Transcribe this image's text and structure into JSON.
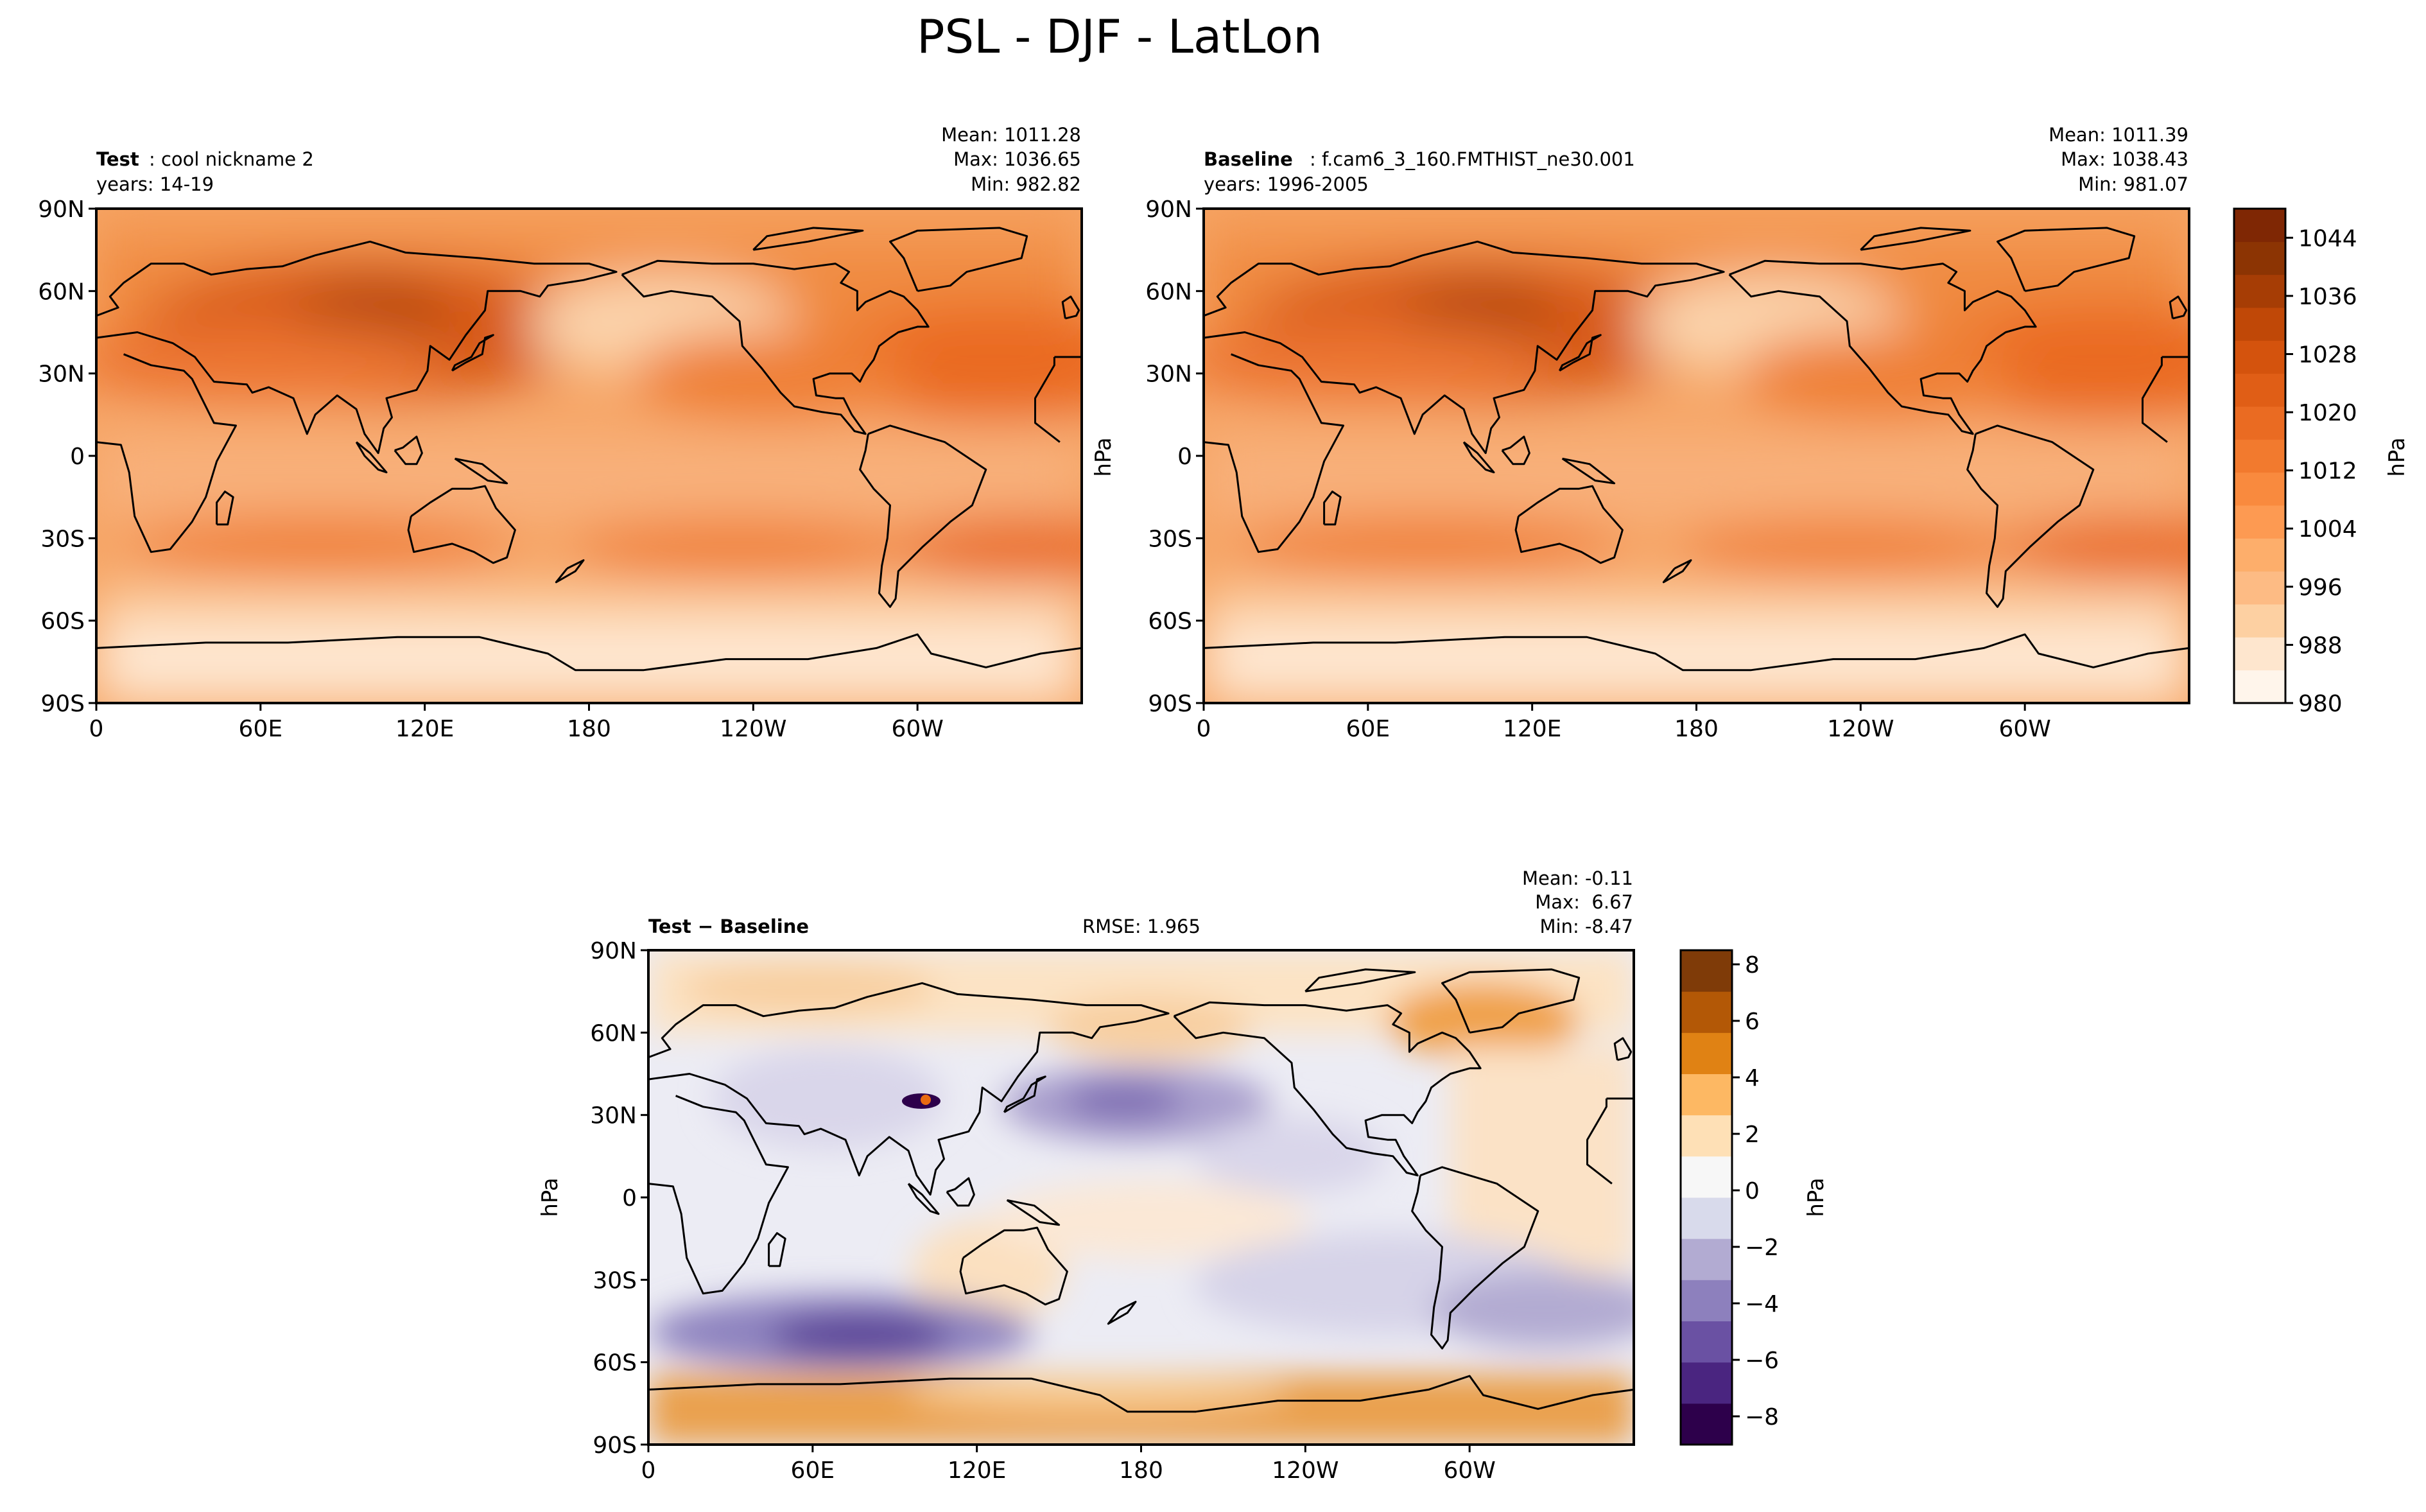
{
  "figure_title": "PSL - DJF - LatLon",
  "colors": {
    "orange_scale": [
      "#fff5eb",
      "#fee6ce",
      "#fdd0a2",
      "#fdbb84",
      "#fdae6b",
      "#fd9a52",
      "#f98a3e",
      "#f27a2e",
      "#ea6b22",
      "#e05e16",
      "#d4530d",
      "#c04807",
      "#a63d05",
      "#8c3403",
      "#7f2704"
    ],
    "diff_scale": [
      "#2d004b",
      "#4a2580",
      "#6a51a3",
      "#8d80bd",
      "#b2abd2",
      "#d8daeb",
      "#f7f7f7",
      "#fee0b6",
      "#fdb863",
      "#e08214",
      "#b35806",
      "#7f3b08"
    ],
    "ocean_orange": "#f5a35f",
    "land_orange": "#f08f45",
    "ocean_diff": "#ececf4",
    "coast": "#000000"
  },
  "test_panel": {
    "label_bold": "Test",
    "label_text": ": cool nickname 2",
    "years": "years: 14-19",
    "mean": "Mean: 1011.28",
    "max": "Max: 1036.65",
    "min": "Min: 982.82"
  },
  "baseline_panel": {
    "label_bold": "Baseline",
    "label_text": ": f.cam6_3_160.FMTHIST_ne30.001",
    "years": "years: 1996-2005",
    "mean": "Mean: 1011.39",
    "max": "Max: 1038.43",
    "min": "Min: 981.07",
    "ylabel": "hPa"
  },
  "diff_panel": {
    "label": "Test − Baseline",
    "rmse": "RMSE: 1.965",
    "mean": "Mean: -0.11",
    "max": "Max:  6.67",
    "min": "Min: -8.47",
    "ylabel": "hPa"
  },
  "lat_ticks": [
    "90N",
    "60N",
    "30N",
    "0",
    "30S",
    "60S",
    "90S"
  ],
  "lon_ticks": [
    "0",
    "60E",
    "120E",
    "180",
    "120W",
    "60W"
  ],
  "chart_data": [
    {
      "type": "heatmap",
      "title": "Test: cool nickname 2",
      "variable": "PSL",
      "units": "hPa",
      "xlabel": "",
      "ylabel": "",
      "xlim": [
        0,
        360
      ],
      "ylim": [
        -90,
        90
      ],
      "stats": {
        "mean": 1011.28,
        "max": 1036.65,
        "min": 982.82
      }
    },
    {
      "type": "heatmap",
      "title": "Baseline: f.cam6_3_160.FMTHIST_ne30.001",
      "variable": "PSL",
      "units": "hPa",
      "xlabel": "",
      "ylabel": "hPa",
      "xlim": [
        0,
        360
      ],
      "ylim": [
        -90,
        90
      ],
      "stats": {
        "mean": 1011.39,
        "max": 1038.43,
        "min": 981.07
      },
      "colorbar": {
        "label": "hPa",
        "range": [
          980,
          1048
        ],
        "ticks": [
          "980",
          "988",
          "996",
          "1004",
          "1012",
          "1020",
          "1028",
          "1036",
          "1044"
        ]
      }
    },
    {
      "type": "heatmap",
      "title": "Test − Baseline",
      "variable": "PSL difference",
      "units": "hPa",
      "xlabel": "",
      "ylabel": "hPa",
      "xlim": [
        0,
        360
      ],
      "ylim": [
        -90,
        90
      ],
      "rmse": 1.965,
      "stats": {
        "mean": -0.11,
        "max": 6.67,
        "min": -8.47
      },
      "colorbar": {
        "label": "hPa",
        "range": [
          -9,
          8.5
        ],
        "ticks": [
          "−8",
          "−6",
          "−4",
          "−2",
          "0",
          "2",
          "4",
          "6",
          "8"
        ]
      }
    }
  ]
}
